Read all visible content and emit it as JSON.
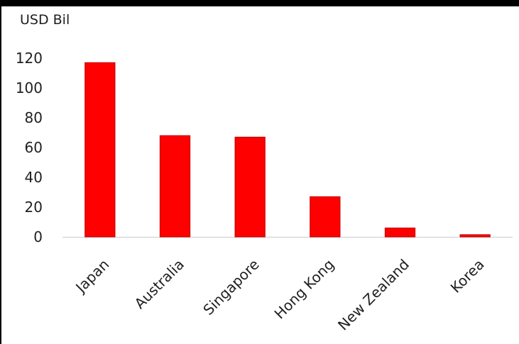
{
  "chart_data": {
    "type": "bar",
    "title": "",
    "unit_label": "USD Bil",
    "xlabel": "",
    "ylabel": "",
    "categories": [
      "Japan",
      "Australia",
      "Singapore",
      "Hong Kong",
      "New Zealand",
      "Korea"
    ],
    "values": [
      117,
      68,
      67,
      27,
      6,
      1.5
    ],
    "ylim": [
      0,
      120
    ],
    "yticks": [
      0,
      20,
      40,
      60,
      80,
      100,
      120
    ],
    "grid": false,
    "legend": "none",
    "bar_color": "#ff0000",
    "bar_edge_color": "#c00000"
  }
}
